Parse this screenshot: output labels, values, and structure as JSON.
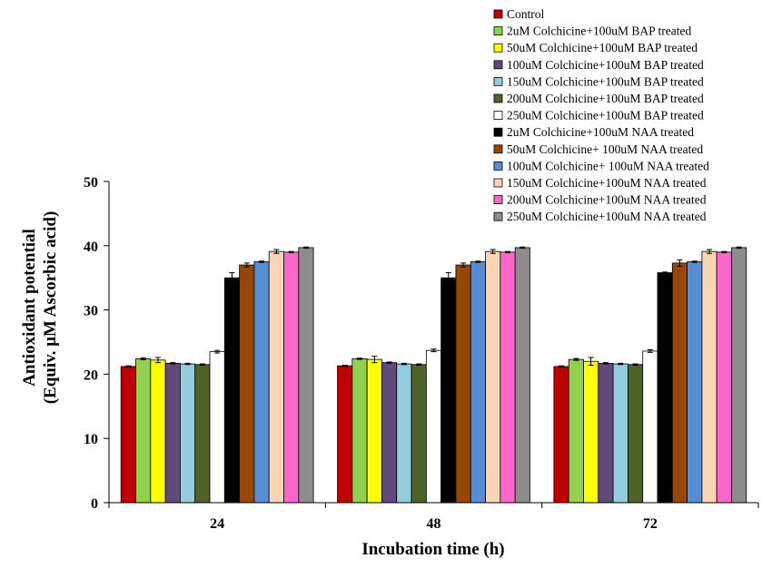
{
  "chart_data": {
    "type": "bar",
    "xlabel": "Incubation time (h)",
    "ylabel_line1": "Antioxidant  potential",
    "ylabel_line2": "(Equiv. µM Ascorbic acid)",
    "ylim": [
      0,
      50
    ],
    "yticks": [
      "0",
      "10",
      "20",
      "30",
      "40",
      "50"
    ],
    "categories": [
      "24",
      "48",
      "72"
    ],
    "legend_placement": "top-right",
    "series": [
      {
        "name": "Control",
        "color": "#c00000",
        "values": [
          21.2,
          21.3,
          21.2
        ],
        "errors": [
          0.1,
          0.1,
          0.1
        ]
      },
      {
        "name": "2uM Colchicine+100uM BAP treated",
        "color": "#92d050",
        "values": [
          22.4,
          22.4,
          22.3
        ],
        "errors": [
          0.15,
          0.1,
          0.15
        ]
      },
      {
        "name": "50uM Colchicine+100uM BAP treated",
        "color": "#ffff00",
        "values": [
          22.2,
          22.3,
          22.0
        ],
        "errors": [
          0.4,
          0.5,
          0.6
        ]
      },
      {
        "name": "100uM Colchicine+100uM BAP treated",
        "color": "#604a7b",
        "values": [
          21.7,
          21.8,
          21.7
        ],
        "errors": [
          0.1,
          0.1,
          0.1
        ]
      },
      {
        "name": "150uM Colchicine+100uM BAP treated",
        "color": "#93cddd",
        "values": [
          21.6,
          21.6,
          21.6
        ],
        "errors": [
          0.1,
          0.1,
          0.1
        ]
      },
      {
        "name": "200uM Colchicine+100uM BAP treated",
        "color": "#4f6228",
        "values": [
          21.5,
          21.5,
          21.5
        ],
        "errors": [
          0.1,
          0.1,
          0.1
        ]
      },
      {
        "name": "250uM Colchicine+100uM BAP treated",
        "color": "#ffffff",
        "values": [
          23.5,
          23.7,
          23.6
        ],
        "errors": [
          0.2,
          0.2,
          0.2
        ]
      },
      {
        "name": "2uM Colchicine+100uM NAA treated",
        "color": "#000000",
        "values": [
          35.0,
          35.0,
          35.8
        ],
        "errors": [
          0.8,
          0.8,
          0.1
        ]
      },
      {
        "name": "50uM Colchicine+ 100uM NAA treated",
        "color": "#974706",
        "values": [
          37.0,
          37.0,
          37.3
        ],
        "errors": [
          0.3,
          0.3,
          0.5
        ]
      },
      {
        "name": "100uM Colchicine+ 100uM NAA treated",
        "color": "#558ed5",
        "values": [
          37.5,
          37.5,
          37.5
        ],
        "errors": [
          0.1,
          0.1,
          0.1
        ]
      },
      {
        "name": "150uM Colchicine+100uM NAA treated",
        "color": "#fcd5b5",
        "values": [
          39.1,
          39.1,
          39.1
        ],
        "errors": [
          0.3,
          0.3,
          0.3
        ]
      },
      {
        "name": "200uM Colchicine+100uM NAA treated",
        "color": "#ff66cc",
        "values": [
          39.0,
          39.0,
          39.0
        ],
        "errors": [
          0.1,
          0.1,
          0.1
        ]
      },
      {
        "name": "250uM Colchicine+100uM NAA treated",
        "color": "#8c8c8c",
        "values": [
          39.7,
          39.7,
          39.7
        ],
        "errors": [
          0.1,
          0.1,
          0.1
        ]
      }
    ]
  }
}
